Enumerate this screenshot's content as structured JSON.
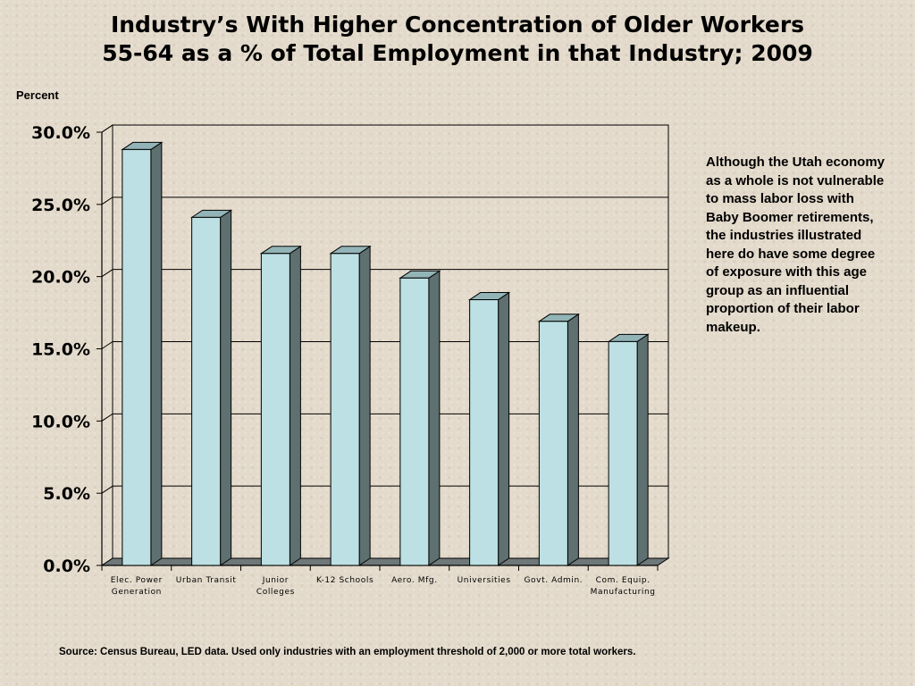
{
  "title_lines": [
    "Industry’s With Higher Concentration of Older Workers",
    "55-64 as a % of Total Employment in that Industry; 2009"
  ],
  "unit_label": "Percent",
  "note": "Although the Utah economy as a whole is not vulnerable to mass labor loss with Baby Boomer retirements, the industries illustrated here do have some degree of exposure with this age group as an influential proportion of their labor makeup.",
  "source": "Source: Census Bureau, LED data.  Used only industries with an employment threshold of 2,000 or more total workers.",
  "colors": {
    "bar_face": "#bce0e3",
    "bar_side": "#5f7070",
    "bar_top": "#93b4b6",
    "floor": "#6e7878",
    "grid": "#000000"
  },
  "chart_data": {
    "type": "bar",
    "categories": [
      [
        "Elec. Power",
        "Generation"
      ],
      [
        "Urban Transit"
      ],
      [
        "Junior",
        "Colleges"
      ],
      [
        "K-12 Schools"
      ],
      [
        "Aero. Mfg."
      ],
      [
        "Universities"
      ],
      [
        "Govt. Admin."
      ],
      [
        "Com. Equip.",
        "Manufacturing"
      ]
    ],
    "values": [
      28.8,
      24.1,
      21.6,
      21.6,
      19.9,
      18.4,
      16.9,
      15.5
    ],
    "ylabel": "Percent",
    "ylim": [
      0,
      30
    ],
    "yticks": [
      "0.0%",
      "5.0%",
      "10.0%",
      "15.0%",
      "20.0%",
      "25.0%",
      "30.0%"
    ],
    "grid": true,
    "style": "3d-column"
  }
}
